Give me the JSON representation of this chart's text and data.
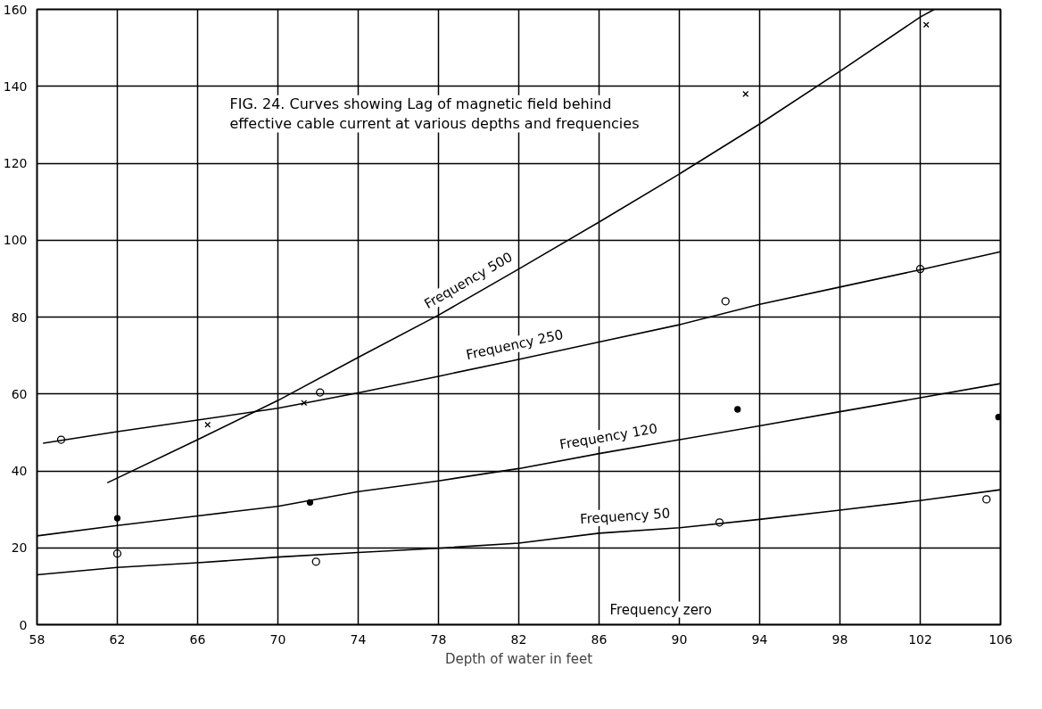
{
  "chart_data": {
    "type": "line",
    "title": "FIG. 24. Curves showing Lag of magnetic field behind\neffective cable current at various depths and frequencies",
    "xlabel": "Depth of water in feet",
    "xlim": [
      58,
      106
    ],
    "ylim": [
      0,
      160
    ],
    "xticks": [
      58,
      62,
      66,
      70,
      74,
      78,
      82,
      86,
      90,
      94,
      98,
      102,
      106
    ],
    "yticks": [
      0,
      20,
      40,
      60,
      80,
      100,
      120,
      140,
      160
    ],
    "grid": true,
    "line_style": "solid",
    "marker": "none",
    "series": [
      {
        "name": "Frequency 500",
        "color": "#000000",
        "x": [
          61.5,
          66,
          70,
          74,
          78,
          82,
          86,
          90,
          94,
          98,
          102,
          102.7
        ],
        "values": [
          36.9,
          48.1,
          58.3,
          69.5,
          80.5,
          92.5,
          104.7,
          117.2,
          130.2,
          143.9,
          158,
          160
        ]
      },
      {
        "name": "Frequency 250",
        "color": "#000000",
        "x": [
          58.3,
          62,
          66,
          70,
          74,
          78,
          82,
          86,
          90,
          94,
          98,
          102,
          106
        ],
        "values": [
          47.2,
          50.2,
          53.2,
          56.3,
          60.3,
          64.6,
          69,
          73.5,
          78,
          83.3,
          87.8,
          92.3,
          97
        ]
      },
      {
        "name": "Frequency 120",
        "color": "#000000",
        "x": [
          58,
          62,
          66,
          70,
          74,
          78,
          82,
          86,
          90,
          94,
          98,
          102,
          106
        ],
        "values": [
          23.1,
          25.8,
          28.3,
          30.8,
          34.6,
          37.4,
          40.6,
          44.5,
          48.1,
          51.7,
          55.4,
          59,
          62.7
        ]
      },
      {
        "name": "Frequency  50",
        "color": "#000000",
        "x": [
          58,
          62,
          66,
          70,
          74,
          78,
          82,
          86,
          90,
          94,
          98,
          102,
          106
        ],
        "values": [
          13,
          14.9,
          16.1,
          17.6,
          18.8,
          19.9,
          21.2,
          23.8,
          25.2,
          27.4,
          29.8,
          32.3,
          35.1
        ]
      },
      {
        "name": "Frequency zero",
        "color": "#000000",
        "x": [
          58,
          106
        ],
        "values": [
          0,
          0
        ]
      },
      {
        "type": "scatter",
        "marker": "circle",
        "color": "#000000",
        "x": [
          59.2,
          72.1,
          92.3,
          102,
          62,
          71.9,
          92,
          105.3
        ],
        "values": [
          48.1,
          60.4,
          84.1,
          92.5,
          18.5,
          16.4,
          26.6,
          32.6
        ]
      },
      {
        "type": "scatter",
        "marker": "cross",
        "color": "#000000",
        "x": [
          66.5,
          71.3,
          93.3,
          102.3
        ],
        "values": [
          52,
          57.7,
          138,
          156
        ]
      },
      {
        "type": "scatter",
        "marker": "diamond",
        "color": "#000000",
        "x": [
          62,
          71.6,
          92.9,
          105.9
        ],
        "values": [
          27.7,
          31.8,
          56,
          54
        ]
      }
    ]
  }
}
